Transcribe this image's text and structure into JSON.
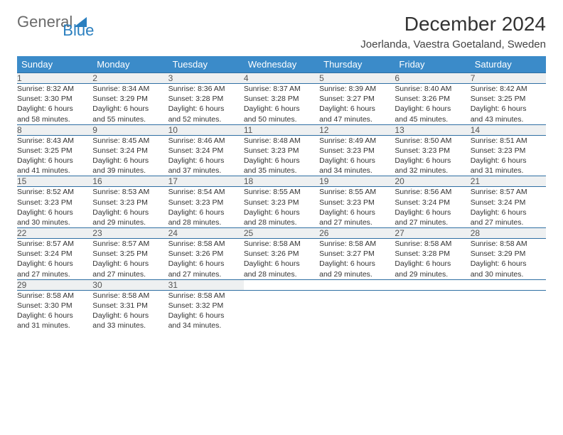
{
  "brand": {
    "part1": "General",
    "part2": "Blue"
  },
  "title": "December 2024",
  "location": "Joerlanda, Vaestra Goetaland, Sweden",
  "colors": {
    "header_bg": "#3b8bc9",
    "header_text": "#ffffff",
    "daynum_bg": "#eef0f1",
    "rule": "#2f6fa3",
    "body_text": "#333333",
    "brand_gray": "#6a6a6a",
    "brand_blue": "#2a7fbf"
  },
  "typography": {
    "title_fontsize": 28,
    "location_fontsize": 15,
    "weekday_fontsize": 13,
    "daynum_fontsize": 12,
    "detail_fontsize": 10.5
  },
  "weekdays": [
    "Sunday",
    "Monday",
    "Tuesday",
    "Wednesday",
    "Thursday",
    "Friday",
    "Saturday"
  ],
  "weeks": [
    [
      {
        "n": "1",
        "sunrise": "8:32 AM",
        "sunset": "3:30 PM",
        "day_h": 6,
        "day_m": 58
      },
      {
        "n": "2",
        "sunrise": "8:34 AM",
        "sunset": "3:29 PM",
        "day_h": 6,
        "day_m": 55
      },
      {
        "n": "3",
        "sunrise": "8:36 AM",
        "sunset": "3:28 PM",
        "day_h": 6,
        "day_m": 52
      },
      {
        "n": "4",
        "sunrise": "8:37 AM",
        "sunset": "3:28 PM",
        "day_h": 6,
        "day_m": 50
      },
      {
        "n": "5",
        "sunrise": "8:39 AM",
        "sunset": "3:27 PM",
        "day_h": 6,
        "day_m": 47
      },
      {
        "n": "6",
        "sunrise": "8:40 AM",
        "sunset": "3:26 PM",
        "day_h": 6,
        "day_m": 45
      },
      {
        "n": "7",
        "sunrise": "8:42 AM",
        "sunset": "3:25 PM",
        "day_h": 6,
        "day_m": 43
      }
    ],
    [
      {
        "n": "8",
        "sunrise": "8:43 AM",
        "sunset": "3:25 PM",
        "day_h": 6,
        "day_m": 41
      },
      {
        "n": "9",
        "sunrise": "8:45 AM",
        "sunset": "3:24 PM",
        "day_h": 6,
        "day_m": 39
      },
      {
        "n": "10",
        "sunrise": "8:46 AM",
        "sunset": "3:24 PM",
        "day_h": 6,
        "day_m": 37
      },
      {
        "n": "11",
        "sunrise": "8:48 AM",
        "sunset": "3:23 PM",
        "day_h": 6,
        "day_m": 35
      },
      {
        "n": "12",
        "sunrise": "8:49 AM",
        "sunset": "3:23 PM",
        "day_h": 6,
        "day_m": 34
      },
      {
        "n": "13",
        "sunrise": "8:50 AM",
        "sunset": "3:23 PM",
        "day_h": 6,
        "day_m": 32
      },
      {
        "n": "14",
        "sunrise": "8:51 AM",
        "sunset": "3:23 PM",
        "day_h": 6,
        "day_m": 31
      }
    ],
    [
      {
        "n": "15",
        "sunrise": "8:52 AM",
        "sunset": "3:23 PM",
        "day_h": 6,
        "day_m": 30
      },
      {
        "n": "16",
        "sunrise": "8:53 AM",
        "sunset": "3:23 PM",
        "day_h": 6,
        "day_m": 29
      },
      {
        "n": "17",
        "sunrise": "8:54 AM",
        "sunset": "3:23 PM",
        "day_h": 6,
        "day_m": 28
      },
      {
        "n": "18",
        "sunrise": "8:55 AM",
        "sunset": "3:23 PM",
        "day_h": 6,
        "day_m": 28
      },
      {
        "n": "19",
        "sunrise": "8:55 AM",
        "sunset": "3:23 PM",
        "day_h": 6,
        "day_m": 27
      },
      {
        "n": "20",
        "sunrise": "8:56 AM",
        "sunset": "3:24 PM",
        "day_h": 6,
        "day_m": 27
      },
      {
        "n": "21",
        "sunrise": "8:57 AM",
        "sunset": "3:24 PM",
        "day_h": 6,
        "day_m": 27
      }
    ],
    [
      {
        "n": "22",
        "sunrise": "8:57 AM",
        "sunset": "3:24 PM",
        "day_h": 6,
        "day_m": 27
      },
      {
        "n": "23",
        "sunrise": "8:57 AM",
        "sunset": "3:25 PM",
        "day_h": 6,
        "day_m": 27
      },
      {
        "n": "24",
        "sunrise": "8:58 AM",
        "sunset": "3:26 PM",
        "day_h": 6,
        "day_m": 27
      },
      {
        "n": "25",
        "sunrise": "8:58 AM",
        "sunset": "3:26 PM",
        "day_h": 6,
        "day_m": 28
      },
      {
        "n": "26",
        "sunrise": "8:58 AM",
        "sunset": "3:27 PM",
        "day_h": 6,
        "day_m": 29
      },
      {
        "n": "27",
        "sunrise": "8:58 AM",
        "sunset": "3:28 PM",
        "day_h": 6,
        "day_m": 29
      },
      {
        "n": "28",
        "sunrise": "8:58 AM",
        "sunset": "3:29 PM",
        "day_h": 6,
        "day_m": 30
      }
    ],
    [
      {
        "n": "29",
        "sunrise": "8:58 AM",
        "sunset": "3:30 PM",
        "day_h": 6,
        "day_m": 31
      },
      {
        "n": "30",
        "sunrise": "8:58 AM",
        "sunset": "3:31 PM",
        "day_h": 6,
        "day_m": 33
      },
      {
        "n": "31",
        "sunrise": "8:58 AM",
        "sunset": "3:32 PM",
        "day_h": 6,
        "day_m": 34
      },
      null,
      null,
      null,
      null
    ]
  ]
}
